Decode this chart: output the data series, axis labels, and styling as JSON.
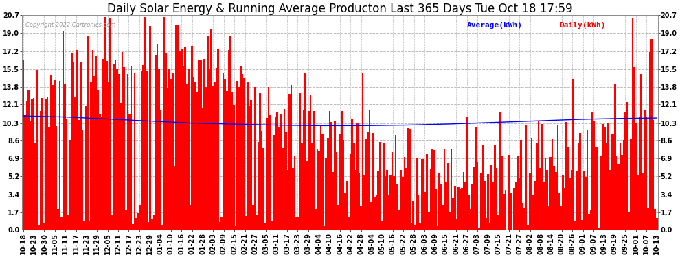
{
  "title": "Daily Solar Energy & Running Average Producton Last 365 Days Tue Oct 18 17:59",
  "copyright": "Copyright 2022 Cartronics.com",
  "legend_avg": "Average(kWh)",
  "legend_daily": "Daily(kWh)",
  "ylim": [
    0.0,
    20.7
  ],
  "yticks": [
    0.0,
    1.7,
    3.4,
    5.2,
    6.9,
    8.6,
    10.3,
    12.1,
    13.8,
    15.5,
    17.2,
    19.0,
    20.7
  ],
  "bar_color": "#ff0000",
  "avg_line_color": "#0000ff",
  "background_color": "#ffffff",
  "grid_color": "#bbbbbb",
  "title_fontsize": 12,
  "tick_fontsize": 7,
  "n_bars": 365,
  "avg_line_points": [
    11.0,
    10.9,
    10.7,
    10.5,
    10.3,
    10.2,
    10.1,
    10.05,
    10.05,
    10.1,
    10.2,
    10.35,
    10.5,
    10.65,
    10.75,
    10.8
  ],
  "x_tick_dates": [
    "10-18",
    "10-23",
    "10-30",
    "11-05",
    "11-11",
    "11-17",
    "11-23",
    "11-29",
    "12-05",
    "12-11",
    "12-17",
    "12-23",
    "12-29",
    "01-04",
    "01-10",
    "01-16",
    "01-22",
    "01-28",
    "02-03",
    "02-09",
    "02-15",
    "02-21",
    "02-27",
    "03-05",
    "03-11",
    "03-17",
    "03-23",
    "03-29",
    "04-04",
    "04-10",
    "04-16",
    "04-22",
    "04-28",
    "05-04",
    "05-10",
    "05-16",
    "05-22",
    "05-28",
    "06-03",
    "06-09",
    "06-15",
    "06-21",
    "06-27",
    "07-03",
    "07-09",
    "07-15",
    "07-21",
    "07-27",
    "08-02",
    "08-08",
    "08-14",
    "08-20",
    "08-26",
    "09-01",
    "09-07",
    "09-13",
    "09-19",
    "09-25",
    "10-01",
    "10-07",
    "10-13"
  ],
  "figsize": [
    9.9,
    3.75
  ],
  "dpi": 100
}
